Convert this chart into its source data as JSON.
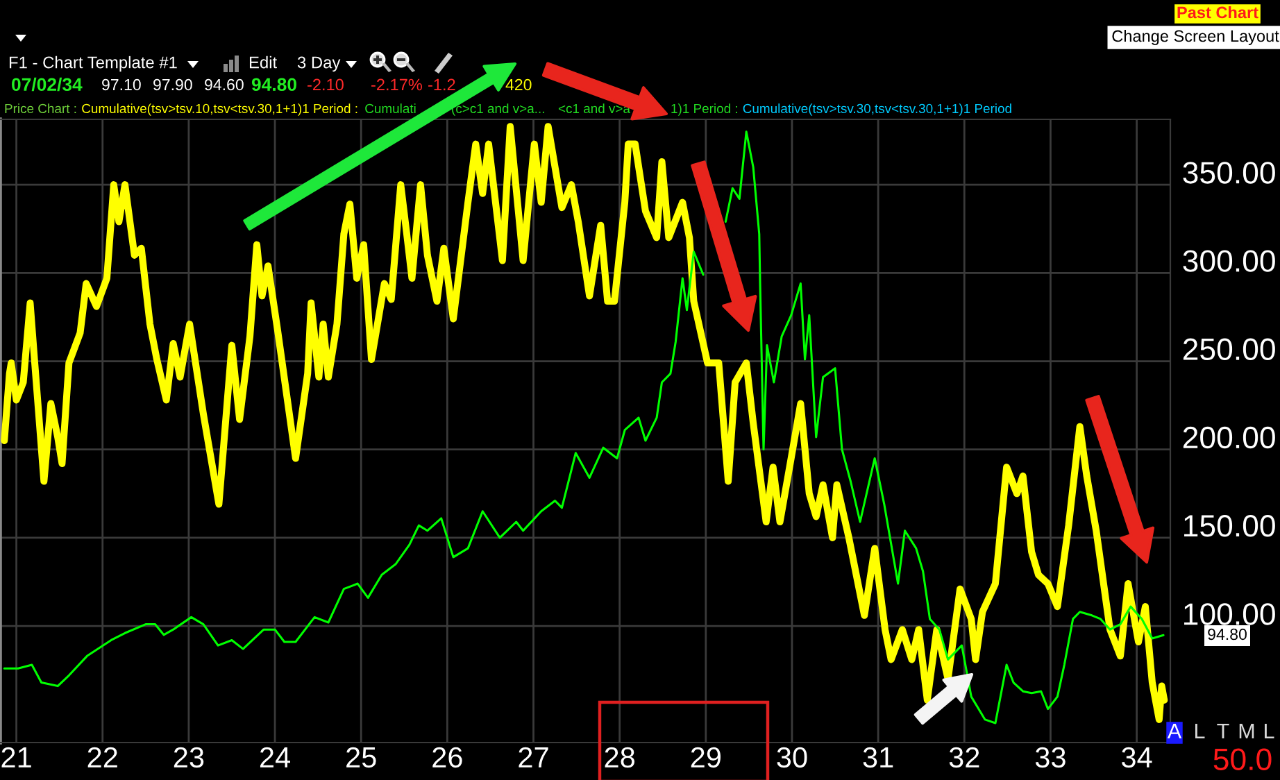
{
  "chart_data": {
    "type": "line",
    "series": [
      {
        "color": "#ffff00",
        "x": [
          20.86,
          20.92,
          20.94,
          21.0,
          21.08,
          21.16,
          21.21,
          21.32,
          21.4,
          21.48,
          21.53,
          21.61,
          21.74,
          21.81,
          21.93,
          22.05,
          22.13,
          22.19,
          22.26,
          22.37,
          22.45,
          22.55,
          22.63,
          22.74,
          22.82,
          22.9,
          23.01,
          23.17,
          23.35,
          23.5,
          23.59,
          23.71,
          23.79,
          23.85,
          23.92,
          24.03,
          24.24,
          24.38,
          24.42,
          24.51,
          24.56,
          24.62,
          24.72,
          24.8,
          24.87,
          24.95,
          25.03,
          25.12,
          25.27,
          25.35,
          25.46,
          25.53,
          25.59,
          25.69,
          25.77,
          25.88,
          25.96,
          26.07,
          26.24,
          26.33,
          26.41,
          26.48,
          26.64,
          26.73,
          26.88,
          27.01,
          27.09,
          27.17,
          27.33,
          27.44,
          27.52,
          27.65,
          27.78,
          27.86,
          27.94,
          28.06,
          28.1,
          28.18,
          28.3,
          28.43,
          28.49,
          28.57,
          28.73,
          28.81,
          28.86,
          29.02,
          29.15,
          29.26,
          29.34,
          29.47,
          29.55,
          29.7,
          29.78,
          29.86,
          29.99,
          30.1,
          30.2,
          30.28,
          30.36,
          30.47,
          30.52,
          30.66,
          30.84,
          30.96,
          31.08,
          31.15,
          31.28,
          31.39,
          31.47,
          31.57,
          31.68,
          31.81,
          31.95,
          32.08,
          32.13,
          32.21,
          32.36,
          32.49,
          32.61,
          32.68,
          32.78,
          32.86,
          32.97,
          33.08,
          33.21,
          33.34,
          33.42,
          33.53,
          33.69,
          33.81,
          33.9,
          34.02,
          34.1,
          34.18,
          34.26,
          34.29,
          34.32
        ],
        "values": [
          205,
          243,
          249,
          228,
          238,
          283,
          251,
          182,
          226,
          207,
          192,
          249,
          266,
          294,
          281,
          297,
          350,
          329,
          350,
          310,
          314,
          271,
          251,
          228,
          260,
          241,
          271,
          220,
          169,
          259,
          217,
          264,
          316,
          287,
          304,
          268,
          195,
          243,
          283,
          241,
          271,
          241,
          271,
          322,
          339,
          297,
          316,
          251,
          294,
          285,
          350,
          322,
          297,
          350,
          310,
          284,
          314,
          274,
          340,
          373,
          345,
          373,
          307,
          383,
          307,
          373,
          340,
          383,
          337,
          350,
          329,
          287,
          327,
          284,
          284,
          340,
          373,
          373,
          335,
          320,
          363,
          320,
          340,
          320,
          284,
          249,
          249,
          182,
          238,
          249,
          215,
          159,
          190,
          159,
          195,
          226,
          175,
          162,
          180,
          150,
          180,
          150,
          106,
          144,
          98,
          81,
          98,
          81,
          98,
          58,
          98,
          70,
          121,
          104,
          81,
          108,
          124,
          190,
          175,
          185,
          142,
          129,
          124,
          111,
          157,
          213,
          185,
          154,
          98,
          83,
          124,
          91,
          111,
          68,
          47,
          66,
          58
        ]
      },
      {
        "color": "#00ff00",
        "x": [
          20.86,
          21.02,
          21.18,
          21.29,
          21.48,
          21.61,
          21.82,
          22.1,
          22.26,
          22.5,
          22.61,
          22.71,
          22.82,
          23.03,
          23.17,
          23.34,
          23.5,
          23.63,
          23.87,
          24.0,
          24.11,
          24.24,
          24.46,
          24.62,
          24.8,
          24.96,
          25.08,
          25.24,
          25.4,
          25.56,
          25.67,
          25.77,
          25.93,
          26.07,
          26.24,
          26.41,
          26.61,
          26.8,
          26.88,
          27.09,
          27.25,
          27.33,
          27.49,
          27.65,
          27.81,
          27.97,
          28.06,
          28.22,
          28.3,
          28.43,
          28.49,
          28.59,
          28.65,
          28.73,
          28.78,
          28.86,
          28.97,
          29.05,
          29.13,
          29.23,
          29.31,
          29.39,
          29.47,
          29.55,
          29.62,
          29.63,
          29.67,
          29.71,
          29.79,
          29.88,
          29.99,
          30.1,
          30.15,
          30.2,
          30.28,
          30.36,
          30.5,
          30.58,
          30.68,
          30.79,
          30.96,
          31.07,
          31.23,
          31.31,
          31.44,
          31.52,
          31.6,
          31.71,
          31.81,
          31.97,
          32.08,
          32.24,
          32.36,
          32.49,
          32.57,
          32.68,
          32.78,
          32.89,
          32.97,
          33.08,
          33.16,
          33.26,
          33.34,
          33.48,
          33.58,
          33.69,
          33.81,
          33.93,
          34.06,
          34.18,
          34.31
        ],
        "values": [
          76,
          76,
          78,
          68,
          66,
          72,
          83,
          92,
          96,
          101,
          101,
          95,
          98,
          105,
          101,
          89,
          92,
          87,
          98,
          98,
          91,
          91,
          105,
          102,
          121,
          124,
          116,
          129,
          135,
          146,
          157,
          154,
          161,
          139,
          144,
          165,
          150,
          159,
          154,
          165,
          171,
          167,
          198,
          184,
          201,
          195,
          211,
          218,
          205,
          218,
          238,
          243,
          261,
          297,
          279,
          312,
          299,
          null,
          null,
          329,
          348,
          342,
          380,
          360,
          322,
          294,
          200,
          259,
          238,
          264,
          276,
          294,
          251,
          276,
          207,
          241,
          246,
          200,
          182,
          159,
          195,
          169,
          124,
          154,
          144,
          131,
          104,
          98,
          81,
          89,
          60,
          47,
          45,
          78,
          68,
          63,
          62,
          63,
          53,
          60,
          78,
          104,
          108,
          106,
          104,
          98,
          101,
          111,
          104,
          93,
          94.8
        ]
      }
    ],
    "xlim": [
      20.81,
      34.39
    ],
    "xticks": [
      21,
      22,
      23,
      24,
      25,
      26,
      27,
      28,
      29,
      30,
      31,
      32,
      33,
      34
    ],
    "ylim": [
      34,
      387
    ],
    "yticks": [
      {
        "value": 100,
        "label": "100.00"
      },
      {
        "value": 150,
        "label": "150.00"
      },
      {
        "value": 200,
        "label": "200.00"
      },
      {
        "value": 250,
        "label": "250.00"
      },
      {
        "value": 300,
        "label": "300.00"
      },
      {
        "value": 350,
        "label": "350.00"
      }
    ],
    "grid": true,
    "annotations": [
      "F1 - Chart Template #1",
      "Edit",
      "3 Day",
      "07/02/34",
      "97.10",
      "97.90",
      "94.60",
      "94.80",
      "-2.10",
      "-2.17%",
      "-1.2",
      "420",
      "Price Chart :",
      "Cumulative(tsv>tsv.10,tsv<tsv.30,1+1)1 Period :",
      "Cumulati",
      "(c>c1 and v>a...",
      "<c1 and v>a",
      "1)1 Period :",
      "Cumulative(tsv>tsv.30,tsv<tsv.30,1+1)1 Period",
      "Past Chart",
      "Change Screen Layout",
      "94.80",
      "A",
      "L",
      "T",
      "M",
      "L",
      "50.0"
    ]
  }
}
